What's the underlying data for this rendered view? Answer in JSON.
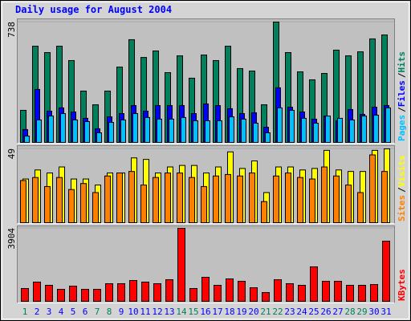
{
  "chart_data": [
    {
      "type": "bar",
      "title": "Daily usage for August 2004",
      "ylim": [
        0,
        738
      ],
      "yticks": [
        738
      ],
      "legend_separator": "/",
      "series": [
        {
          "name": "Hits",
          "color": "#00805c",
          "values": [
            197,
            590,
            551,
            590,
            502,
            315,
            231,
            315,
            462,
            630,
            521,
            561,
            428,
            531,
            394,
            536,
            502,
            590,
            453,
            438,
            231,
            738,
            551,
            433,
            384,
            423,
            566,
            531,
            556,
            635,
            659
          ]
        },
        {
          "name": "Files",
          "color": "#0000ff",
          "values": [
            79,
            325,
            192,
            212,
            187,
            148,
            84,
            157,
            177,
            226,
            192,
            226,
            226,
            226,
            177,
            236,
            226,
            207,
            177,
            182,
            93,
            335,
            216,
            187,
            143,
            162,
            133,
            202,
            172,
            216,
            226
          ]
        },
        {
          "name": "Pages",
          "color": "#00c0ff",
          "values": [
            39,
            138,
            162,
            177,
            138,
            128,
            59,
            123,
            138,
            177,
            153,
            143,
            143,
            153,
            133,
            133,
            133,
            157,
            143,
            118,
            59,
            212,
            197,
            148,
            118,
            162,
            148,
            138,
            162,
            167,
            212
          ]
        }
      ]
    },
    {
      "type": "bar",
      "ylim": [
        0,
        49
      ],
      "yticks": [
        49
      ],
      "legend_separator": "/",
      "series": [
        {
          "name": "Visits",
          "color": "#ffff00",
          "values": [
            29,
            35,
            33,
            37,
            29,
            29,
            25,
            33,
            33,
            43,
            42,
            33,
            37,
            38,
            38,
            33,
            37,
            47,
            36,
            41,
            20,
            37,
            37,
            35,
            36,
            48,
            35,
            34,
            34,
            48,
            49
          ]
        },
        {
          "name": "Sites",
          "color": "#ff8000",
          "values": [
            28,
            30,
            24,
            30,
            22,
            26,
            20,
            31,
            33,
            34,
            25,
            30,
            33,
            33,
            30,
            24,
            31,
            32,
            31,
            33,
            14,
            31,
            33,
            30,
            29,
            37,
            31,
            25,
            20,
            45,
            34
          ]
        }
      ]
    },
    {
      "type": "bar",
      "ylim": [
        0,
        3904
      ],
      "yticks": [
        3904
      ],
      "categories": [
        "1",
        "2",
        "3",
        "4",
        "5",
        "6",
        "7",
        "8",
        "9",
        "10",
        "11",
        "12",
        "13",
        "14",
        "15",
        "16",
        "17",
        "18",
        "19",
        "20",
        "21",
        "22",
        "23",
        "24",
        "25",
        "26",
        "27",
        "28",
        "29",
        "30",
        "31"
      ],
      "label_colors": [
        "#00805c",
        "#0000ff",
        "#0000ff",
        "#0000ff",
        "#0000ff",
        "#0000ff",
        "#00805c",
        "#00805c",
        "#0000ff",
        "#0000ff",
        "#0000ff",
        "#0000ff",
        "#0000ff",
        "#00805c",
        "#00805c",
        "#0000ff",
        "#0000ff",
        "#0000ff",
        "#0000ff",
        "#0000ff",
        "#00805c",
        "#00805c",
        "#0000ff",
        "#0000ff",
        "#0000ff",
        "#0000ff",
        "#0000ff",
        "#00805c",
        "#00805c",
        "#0000ff",
        "#0000ff"
      ],
      "series": [
        {
          "name": "KBytes",
          "color": "#ff0000",
          "values": [
            686,
            1030,
            858,
            644,
            815,
            644,
            644,
            944,
            944,
            1115,
            1030,
            944,
            1158,
            3904,
            686,
            1287,
            858,
            1201,
            1073,
            729,
            472,
            1158,
            944,
            858,
            1845,
            1073,
            1073,
            858,
            858,
            901,
            3218
          ]
        }
      ]
    }
  ]
}
